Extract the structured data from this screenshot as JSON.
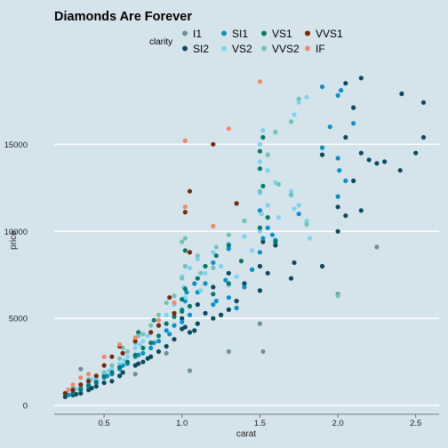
{
  "chart_data": {
    "type": "scatter",
    "title": "Diamonds Are Forever",
    "xlabel": "carat",
    "ylabel": "price",
    "xlim": [
      0.18,
      2.65
    ],
    "ylim": [
      -500,
      19200
    ],
    "x_ticks": [
      0.5,
      1.0,
      1.5,
      2.0,
      2.5
    ],
    "x_tick_labels": [
      "0.5",
      "1.0",
      "1.5",
      "2.0",
      "2.5"
    ],
    "y_ticks": [
      0,
      5000,
      10000,
      15000
    ],
    "y_tick_labels": [
      "0",
      "5000",
      "10000",
      "15000"
    ],
    "grid": "horizontal",
    "legend": {
      "title": "clarity",
      "placement": "top",
      "entries": [
        {
          "name": "I1",
          "color": "#6e8f9c"
        },
        {
          "name": "SI2",
          "color": "#0a4a5e"
        },
        {
          "name": "SI1",
          "color": "#0a90c8"
        },
        {
          "name": "VS2",
          "color": "#7ed3f0"
        },
        {
          "name": "VS1",
          "color": "#05796a"
        },
        {
          "name": "VVS2",
          "color": "#6fc3bb"
        },
        {
          "name": "VVS1",
          "color": "#7a2808"
        },
        {
          "name": "IF",
          "color": "#ee8a6a"
        }
      ]
    },
    "series": [
      {
        "name": "I1",
        "color": "#6e8f9c",
        "points": [
          [
            1.5,
            4700
          ],
          [
            1.52,
            3100
          ],
          [
            1.3,
            3100
          ],
          [
            1.05,
            2000
          ],
          [
            0.35,
            2100
          ],
          [
            2.25,
            9100
          ],
          [
            2.0,
            6400
          ],
          [
            0.9,
            3000
          ],
          [
            0.7,
            1800
          ],
          [
            0.5,
            1300
          ]
        ]
      },
      {
        "name": "SI2",
        "color": "#0a4a5e",
        "points": [
          [
            2.15,
            18800
          ],
          [
            2.05,
            18500
          ],
          [
            2.41,
            17900
          ],
          [
            2.55,
            17400
          ],
          [
            2.1,
            17100
          ],
          [
            2.05,
            15400
          ],
          [
            2.15,
            14500
          ],
          [
            2.2,
            14100
          ],
          [
            2.25,
            13900
          ],
          [
            2.5,
            14500
          ],
          [
            2.4,
            13500
          ],
          [
            2.55,
            15400
          ],
          [
            1.9,
            14400
          ],
          [
            2.3,
            14000
          ],
          [
            2.1,
            12900
          ],
          [
            2.15,
            11200
          ],
          [
            2.05,
            10900
          ],
          [
            2.0,
            10000
          ],
          [
            1.9,
            8000
          ],
          [
            1.72,
            8200
          ],
          [
            1.5,
            8000
          ],
          [
            1.6,
            9200
          ],
          [
            1.4,
            7000
          ],
          [
            1.3,
            7600
          ],
          [
            1.2,
            6800
          ],
          [
            1.1,
            5800
          ],
          [
            1.0,
            5000
          ],
          [
            1.0,
            4400
          ],
          [
            1.05,
            4200
          ],
          [
            1.1,
            4700
          ],
          [
            1.15,
            5300
          ],
          [
            1.2,
            5000
          ],
          [
            0.9,
            3400
          ],
          [
            0.95,
            3800
          ],
          [
            0.85,
            3100
          ],
          [
            0.8,
            2800
          ],
          [
            0.75,
            2500
          ],
          [
            0.7,
            2300
          ],
          [
            0.6,
            1700
          ],
          [
            0.55,
            1400
          ],
          [
            0.5,
            1300
          ],
          [
            0.45,
            1100
          ],
          [
            0.4,
            900
          ],
          [
            0.35,
            700
          ],
          [
            0.3,
            600
          ],
          [
            0.25,
            500
          ],
          [
            0.32,
            650
          ],
          [
            0.42,
            1000
          ],
          [
            0.62,
            1900
          ],
          [
            0.72,
            2400
          ],
          [
            0.78,
            2700
          ],
          [
            1.02,
            4500
          ],
          [
            1.08,
            4300
          ],
          [
            1.25,
            5200
          ],
          [
            1.3,
            5500
          ],
          [
            1.35,
            6000
          ],
          [
            1.5,
            6600
          ],
          [
            1.55,
            7600
          ],
          [
            2.0,
            11400
          ],
          [
            1.7,
            7300
          ],
          [
            1.52,
            9400
          ]
        ]
      },
      {
        "name": "SI1",
        "color": "#0a90c8",
        "points": [
          [
            1.9,
            18300
          ],
          [
            2.0,
            17800
          ],
          [
            2.02,
            18100
          ],
          [
            1.95,
            16000
          ],
          [
            2.1,
            16200
          ],
          [
            2.0,
            14200
          ],
          [
            2.05,
            12900
          ],
          [
            2.01,
            13500
          ],
          [
            1.7,
            12100
          ],
          [
            1.5,
            11200
          ],
          [
            1.55,
            10200
          ],
          [
            1.6,
            9500
          ],
          [
            1.5,
            8800
          ],
          [
            1.3,
            9000
          ],
          [
            1.2,
            8200
          ],
          [
            1.15,
            7000
          ],
          [
            1.1,
            6500
          ],
          [
            1.02,
            6000
          ],
          [
            1.0,
            5500
          ],
          [
            1.0,
            4800
          ],
          [
            1.05,
            5200
          ],
          [
            1.2,
            5800
          ],
          [
            1.3,
            6200
          ],
          [
            1.35,
            5600
          ],
          [
            1.4,
            6800
          ],
          [
            0.9,
            4300
          ],
          [
            0.95,
            4600
          ],
          [
            0.85,
            3700
          ],
          [
            0.8,
            3300
          ],
          [
            0.75,
            3000
          ],
          [
            0.7,
            2800
          ],
          [
            0.65,
            2400
          ],
          [
            0.6,
            2100
          ],
          [
            0.55,
            1800
          ],
          [
            0.5,
            1600
          ],
          [
            0.45,
            1400
          ],
          [
            0.4,
            1200
          ],
          [
            0.35,
            1000
          ],
          [
            0.3,
            800
          ],
          [
            0.27,
            600
          ],
          [
            0.52,
            1700
          ],
          [
            0.62,
            2300
          ],
          [
            0.72,
            2900
          ],
          [
            0.82,
            3600
          ],
          [
            0.92,
            4100
          ],
          [
            1.03,
            6500
          ],
          [
            1.08,
            7000
          ],
          [
            1.22,
            6000
          ],
          [
            1.28,
            7200
          ],
          [
            1.45,
            7800
          ],
          [
            1.52,
            9600
          ],
          [
            1.58,
            9800
          ],
          [
            1.75,
            11000
          ],
          [
            2.0,
            12000
          ],
          [
            1.9,
            14800
          ]
        ]
      },
      {
        "name": "VS2",
        "color": "#7ed3f0",
        "points": [
          [
            1.8,
            17700
          ],
          [
            1.75,
            17400
          ],
          [
            1.72,
            16700
          ],
          [
            1.52,
            15800
          ],
          [
            1.5,
            15000
          ],
          [
            1.5,
            14000
          ],
          [
            1.55,
            13500
          ],
          [
            1.6,
            12800
          ],
          [
            1.7,
            12300
          ],
          [
            1.75,
            11500
          ],
          [
            1.8,
            10600
          ],
          [
            1.5,
            12200
          ],
          [
            1.51,
            11000
          ],
          [
            1.5,
            10000
          ],
          [
            1.4,
            9700
          ],
          [
            1.3,
            9300
          ],
          [
            1.2,
            8800
          ],
          [
            1.1,
            8400
          ],
          [
            1.05,
            7900
          ],
          [
            1.0,
            7400
          ],
          [
            1.01,
            6800
          ],
          [
            1.15,
            7600
          ],
          [
            1.25,
            8000
          ],
          [
            1.2,
            6400
          ],
          [
            1.35,
            7400
          ],
          [
            0.9,
            5200
          ],
          [
            0.95,
            5800
          ],
          [
            0.85,
            4600
          ],
          [
            0.8,
            4200
          ],
          [
            0.75,
            3700
          ],
          [
            0.7,
            3300
          ],
          [
            0.65,
            2800
          ],
          [
            0.6,
            2400
          ],
          [
            0.55,
            2100
          ],
          [
            0.5,
            1800
          ],
          [
            0.45,
            1600
          ],
          [
            0.4,
            1400
          ],
          [
            0.35,
            1200
          ],
          [
            0.32,
            950
          ],
          [
            0.3,
            850
          ],
          [
            0.42,
            1500
          ],
          [
            0.53,
            2000
          ],
          [
            0.63,
            2600
          ],
          [
            0.73,
            3500
          ],
          [
            0.78,
            4000
          ],
          [
            1.02,
            6200
          ],
          [
            1.12,
            6600
          ],
          [
            1.3,
            6900
          ],
          [
            1.45,
            8900
          ],
          [
            1.55,
            11500
          ],
          [
            1.72,
            11300
          ],
          [
            1.82,
            9600
          ],
          [
            1.62,
            10800
          ]
        ]
      },
      {
        "name": "VS1",
        "color": "#05796a",
        "points": [
          [
            1.52,
            15400
          ],
          [
            1.5,
            14600
          ],
          [
            1.5,
            13600
          ],
          [
            1.52,
            12600
          ],
          [
            1.55,
            10800
          ],
          [
            1.5,
            10200
          ],
          [
            1.3,
            9200
          ],
          [
            1.22,
            8600
          ],
          [
            1.15,
            8000
          ],
          [
            1.1,
            7300
          ],
          [
            1.02,
            6700
          ],
          [
            1.0,
            6100
          ],
          [
            1.0,
            5400
          ],
          [
            1.05,
            5700
          ],
          [
            1.2,
            6400
          ],
          [
            1.3,
            7000
          ],
          [
            0.9,
            4700
          ],
          [
            0.95,
            5100
          ],
          [
            0.85,
            4000
          ],
          [
            0.8,
            3600
          ],
          [
            0.75,
            3300
          ],
          [
            0.7,
            2900
          ],
          [
            0.65,
            2500
          ],
          [
            0.6,
            2200
          ],
          [
            0.55,
            1900
          ],
          [
            0.5,
            1700
          ],
          [
            0.45,
            1300
          ],
          [
            0.4,
            1100
          ],
          [
            0.35,
            900
          ],
          [
            0.3,
            700
          ],
          [
            0.72,
            4200
          ],
          [
            0.82,
            4900
          ],
          [
            1.02,
            8900
          ],
          [
            1.38,
            8300
          ],
          [
            1.6,
            9400
          ]
        ]
      },
      {
        "name": "VVS2",
        "color": "#6fc3bb",
        "points": [
          [
            1.75,
            17600
          ],
          [
            1.7,
            16300
          ],
          [
            1.6,
            15700
          ],
          [
            1.55,
            14400
          ],
          [
            1.62,
            12700
          ],
          [
            1.7,
            12100
          ],
          [
            1.8,
            10400
          ],
          [
            1.5,
            12300
          ],
          [
            1.4,
            10600
          ],
          [
            1.3,
            9800
          ],
          [
            1.22,
            9100
          ],
          [
            1.1,
            8600
          ],
          [
            1.02,
            8000
          ],
          [
            1.0,
            7300
          ],
          [
            1.0,
            9400
          ],
          [
            1.02,
            9600
          ],
          [
            0.9,
            5900
          ],
          [
            0.95,
            6300
          ],
          [
            0.85,
            5200
          ],
          [
            0.8,
            4600
          ],
          [
            0.75,
            4100
          ],
          [
            0.7,
            3600
          ],
          [
            0.65,
            3100
          ],
          [
            0.6,
            2700
          ],
          [
            0.55,
            2300
          ],
          [
            0.5,
            1900
          ],
          [
            0.45,
            1700
          ],
          [
            0.4,
            1500
          ],
          [
            0.35,
            1200
          ],
          [
            0.3,
            1000
          ],
          [
            0.25,
            700
          ],
          [
            0.62,
            3300
          ],
          [
            0.72,
            4000
          ],
          [
            1.12,
            7600
          ],
          [
            1.2,
            7900
          ],
          [
            2.0,
            6300
          ]
        ]
      },
      {
        "name": "VVS1",
        "color": "#7a2808",
        "points": [
          [
            1.2,
            15000
          ],
          [
            1.05,
            12300
          ],
          [
            1.02,
            11100
          ],
          [
            1.35,
            11600
          ],
          [
            1.05,
            8800
          ],
          [
            0.92,
            6200
          ],
          [
            0.95,
            5300
          ],
          [
            0.85,
            4600
          ],
          [
            0.8,
            4200
          ],
          [
            0.7,
            3700
          ],
          [
            0.6,
            3400
          ],
          [
            0.55,
            2800
          ],
          [
            0.5,
            2300
          ],
          [
            0.45,
            1700
          ],
          [
            0.4,
            1400
          ],
          [
            0.35,
            1200
          ],
          [
            0.3,
            900
          ],
          [
            0.25,
            700
          ],
          [
            0.62,
            3000
          ]
        ]
      },
      {
        "name": "IF",
        "color": "#ee8a6a",
        "points": [
          [
            1.5,
            18600
          ],
          [
            1.3,
            15900
          ],
          [
            1.02,
            15200
          ],
          [
            1.02,
            11400
          ],
          [
            1.2,
            10300
          ],
          [
            0.95,
            5900
          ],
          [
            0.85,
            4900
          ],
          [
            0.7,
            3900
          ],
          [
            0.6,
            3500
          ],
          [
            0.5,
            2800
          ],
          [
            0.4,
            1800
          ],
          [
            0.35,
            1600
          ],
          [
            0.3,
            1200
          ],
          [
            0.27,
            900
          ]
        ]
      }
    ]
  }
}
